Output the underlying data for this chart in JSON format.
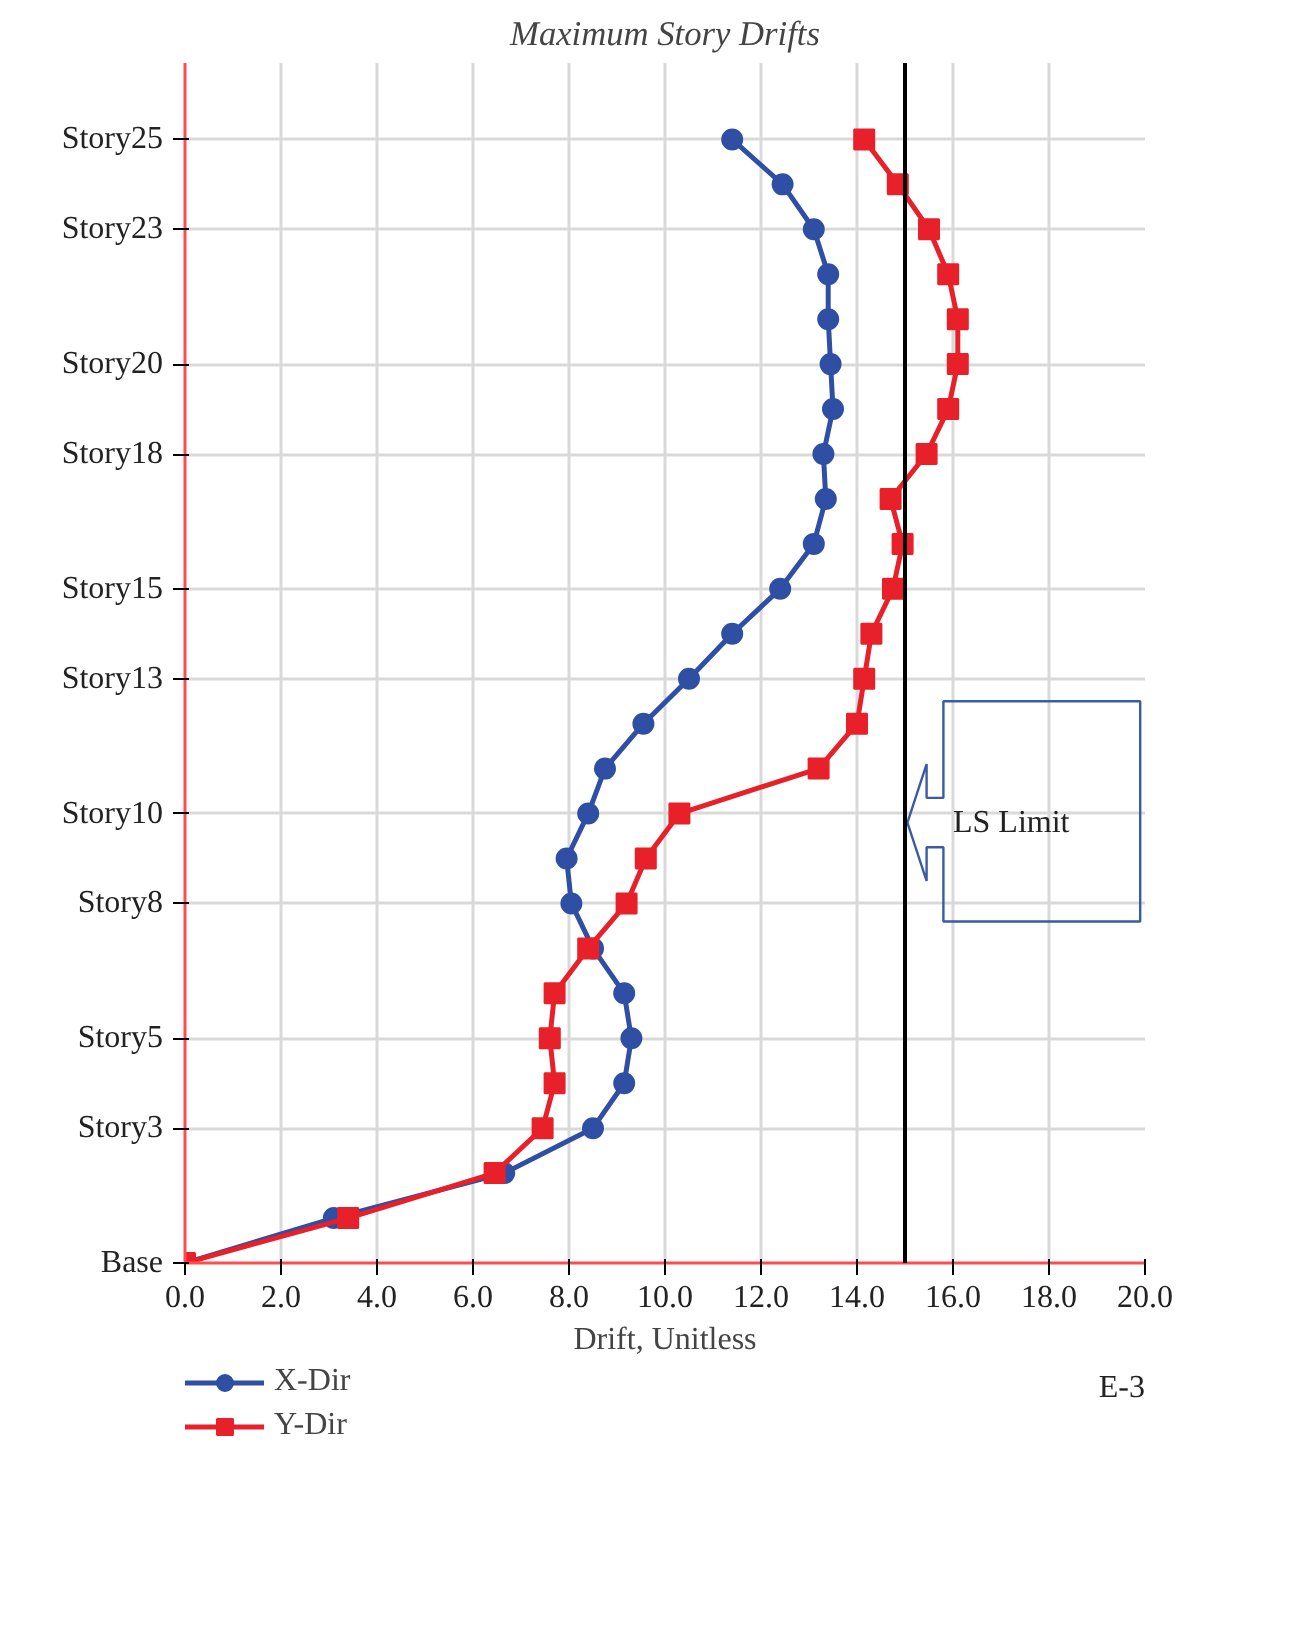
{
  "chart_data": {
    "type": "line",
    "orientation": "horizontal",
    "title": "Maximum Story Drifts",
    "xlabel": "Drift, Unitless",
    "xlim": [
      0,
      20
    ],
    "xticks": [
      {
        "value": 0,
        "label": "0.0"
      },
      {
        "value": 2,
        "label": "2.0"
      },
      {
        "value": 4,
        "label": "4.0"
      },
      {
        "value": 6,
        "label": "6.0"
      },
      {
        "value": 8,
        "label": "8.0"
      },
      {
        "value": 10,
        "label": "10.0"
      },
      {
        "value": 12,
        "label": "12.0"
      },
      {
        "value": 14,
        "label": "14.0"
      },
      {
        "value": 16,
        "label": "16.0"
      },
      {
        "value": 18,
        "label": "18.0"
      },
      {
        "value": 20,
        "label": "20.0"
      }
    ],
    "categories": [
      "Story25",
      null,
      "Story23",
      null,
      null,
      "Story20",
      null,
      "Story18",
      null,
      null,
      "Story15",
      null,
      "Story13",
      null,
      null,
      "Story10",
      null,
      "Story8",
      null,
      null,
      "Story5",
      null,
      "Story3",
      null,
      null,
      "Base"
    ],
    "series": [
      {
        "name": "X-Dir",
        "color": "#2e4fa3",
        "marker": "circle",
        "values": [
          11.4,
          12.45,
          13.1,
          13.4,
          13.4,
          13.45,
          13.5,
          13.3,
          13.35,
          13.1,
          12.4,
          11.4,
          10.5,
          9.55,
          8.75,
          8.4,
          7.95,
          8.05,
          8.5,
          9.15,
          9.3,
          9.15,
          8.5,
          6.65,
          3.1,
          0
        ]
      },
      {
        "name": "Y-Dir",
        "color": "#e8202a",
        "marker": "square",
        "values": [
          14.15,
          14.85,
          15.5,
          15.9,
          16.1,
          16.1,
          15.9,
          15.45,
          14.7,
          14.95,
          14.75,
          14.3,
          14.15,
          14.0,
          13.2,
          10.3,
          9.6,
          9.2,
          8.4,
          7.7,
          7.6,
          7.7,
          7.45,
          6.45,
          3.4,
          0
        ]
      }
    ],
    "ref_lines": [
      {
        "axis": "x",
        "value": 15,
        "label": "LS Limit",
        "color": "#000000"
      }
    ],
    "annotations": [
      "E-3"
    ],
    "grid": true,
    "legend": "bottom left",
    "line_style": "solid"
  }
}
